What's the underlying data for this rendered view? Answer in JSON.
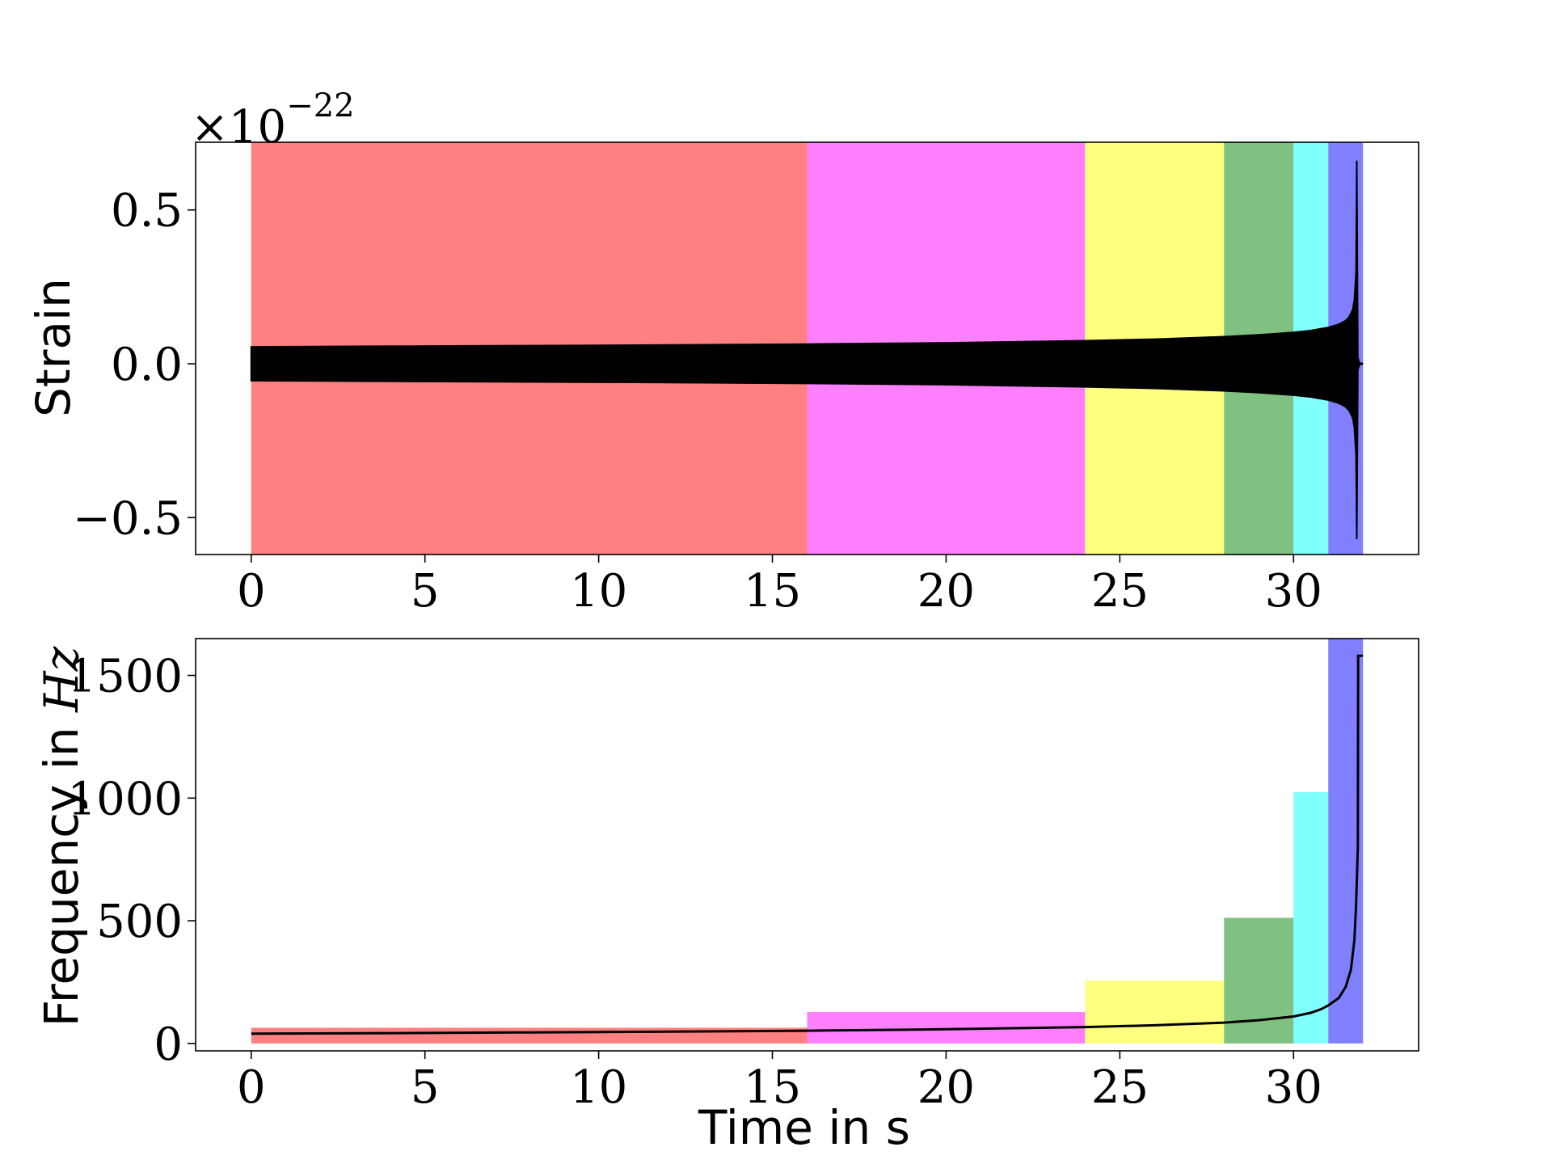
{
  "figure": {
    "panels": [
      "strain",
      "frequency"
    ]
  },
  "chart_data": [
    {
      "id": "strain",
      "type": "line",
      "title": "",
      "xlabel": "",
      "ylabel": "Strain",
      "offset_text": "×10",
      "offset_exponent": "−22",
      "xlim": [
        -1.6,
        33.6
      ],
      "ylim": [
        -0.62,
        0.72
      ],
      "xticks": [
        0,
        5,
        10,
        15,
        20,
        25,
        30
      ],
      "xtick_labels": [
        "0",
        "5",
        "10",
        "15",
        "20",
        "25",
        "30"
      ],
      "yticks": [
        -0.5,
        0.0,
        0.5
      ],
      "ytick_labels": [
        "−0.5",
        "0.0",
        "0.5"
      ],
      "grid": false,
      "bands": [
        {
          "x0": 0,
          "x1": 16,
          "color": "#ff8080"
        },
        {
          "x0": 16,
          "x1": 24,
          "color": "#ff80ff"
        },
        {
          "x0": 24,
          "x1": 28,
          "color": "#ffff80"
        },
        {
          "x0": 28,
          "x1": 30,
          "color": "#80c080"
        },
        {
          "x0": 30,
          "x1": 31,
          "color": "#80ffff"
        },
        {
          "x0": 31,
          "x1": 32,
          "color": "#8080ff"
        }
      ],
      "series": [
        {
          "color": "#000000",
          "envelope": {
            "x": [
              0,
              4,
              8,
              12,
              16,
              20,
              24,
              26,
              28,
              29,
              30,
              30.5,
              31,
              31.3,
              31.5,
              31.6,
              31.7,
              31.75,
              31.8,
              31.82,
              31.85,
              31.9,
              32
            ],
            "upper": [
              0.055,
              0.057,
              0.059,
              0.061,
              0.064,
              0.068,
              0.075,
              0.08,
              0.088,
              0.094,
              0.102,
              0.108,
              0.118,
              0.128,
              0.14,
              0.152,
              0.175,
              0.205,
              0.3,
              0.66,
              0.02,
              0.002,
              0.0
            ],
            "lower": [
              -0.055,
              -0.057,
              -0.059,
              -0.061,
              -0.064,
              -0.068,
              -0.075,
              -0.08,
              -0.088,
              -0.094,
              -0.102,
              -0.108,
              -0.118,
              -0.128,
              -0.14,
              -0.152,
              -0.175,
              -0.205,
              -0.3,
              -0.57,
              -0.02,
              -0.002,
              0.0
            ]
          }
        }
      ]
    },
    {
      "id": "frequency",
      "type": "line",
      "title": "",
      "xlabel": "Time in s",
      "ylabel_text": "Frequency in ",
      "ylabel_math": "Hz",
      "xlim": [
        -1.6,
        33.6
      ],
      "ylim": [
        -30,
        1650
      ],
      "xticks": [
        0,
        5,
        10,
        15,
        20,
        25,
        30
      ],
      "xtick_labels": [
        "0",
        "5",
        "10",
        "15",
        "20",
        "25",
        "30"
      ],
      "yticks": [
        0,
        500,
        1000,
        1500
      ],
      "ytick_labels": [
        "0",
        "500",
        "1000",
        "1500"
      ],
      "grid": false,
      "bars": [
        {
          "x0": 0,
          "x1": 16,
          "value": 64,
          "color": "#ff8080"
        },
        {
          "x0": 16,
          "x1": 24,
          "value": 128,
          "color": "#ff80ff"
        },
        {
          "x0": 24,
          "x1": 28,
          "value": 256,
          "color": "#ffff80"
        },
        {
          "x0": 28,
          "x1": 30,
          "value": 512,
          "color": "#80c080"
        },
        {
          "x0": 30,
          "x1": 31,
          "value": 1024,
          "color": "#80ffff"
        },
        {
          "x0": 31,
          "x1": 32,
          "value": 1650,
          "color": "#8080ff"
        }
      ],
      "series": [
        {
          "color": "#000000",
          "x": [
            0,
            4,
            8,
            12,
            16,
            20,
            24,
            26,
            28,
            29,
            30,
            30.5,
            30.8,
            31,
            31.3,
            31.5,
            31.65,
            31.75,
            31.8,
            31.83,
            31.85,
            31.86,
            31.87,
            32
          ],
          "y": [
            40,
            42,
            45,
            48,
            52,
            58,
            67,
            74,
            85,
            95,
            110,
            125,
            140,
            155,
            185,
            230,
            300,
            420,
            560,
            700,
            800,
            1580,
            1580,
            1580
          ]
        }
      ]
    }
  ]
}
